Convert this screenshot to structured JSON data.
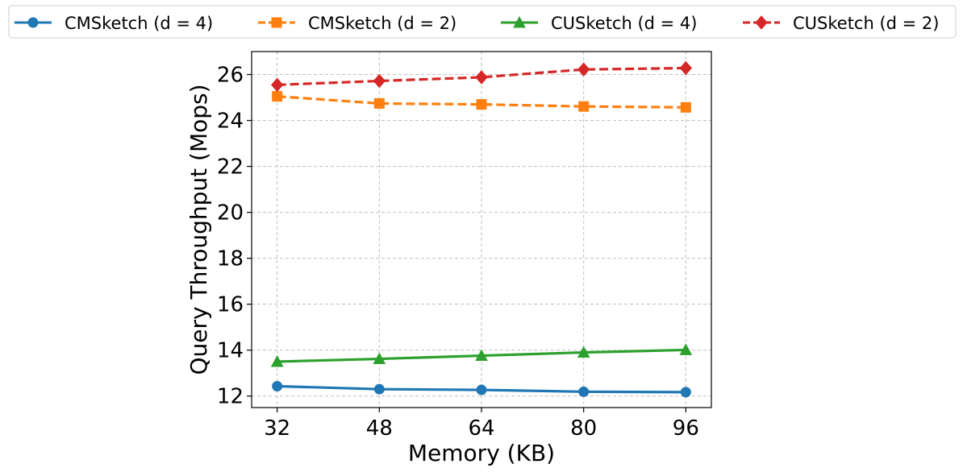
{
  "chart_data": {
    "type": "line",
    "xlabel": "Memory (KB)",
    "ylabel": "Query Throughput (Mops)",
    "categories": [
      "32",
      "48",
      "64",
      "80",
      "96"
    ],
    "x": [
      32,
      48,
      64,
      80,
      96
    ],
    "xlim": [
      28,
      100
    ],
    "ylim": [
      11.5,
      27
    ],
    "yticks": [
      12,
      14,
      16,
      18,
      20,
      22,
      24,
      26
    ],
    "grid": true,
    "legend_position": "top",
    "series": [
      {
        "name": "CMSketch (d = 4)",
        "color": "#1f77b4",
        "marker": "circle",
        "linestyle": "solid",
        "values": [
          12.43,
          12.3,
          12.27,
          12.19,
          12.17
        ]
      },
      {
        "name": "CMSketch (d = 2)",
        "color": "#ff7f0e",
        "marker": "square",
        "linestyle": "dashed",
        "values": [
          25.05,
          24.74,
          24.7,
          24.61,
          24.57
        ]
      },
      {
        "name": "CUSketch (d = 4)",
        "color": "#2ca02c",
        "marker": "triangle",
        "linestyle": "solid",
        "values": [
          13.5,
          13.62,
          13.76,
          13.9,
          14.01
        ]
      },
      {
        "name": "CUSketch (d = 2)",
        "color": "#d62728",
        "marker": "diamond",
        "linestyle": "dashed",
        "values": [
          25.55,
          25.72,
          25.88,
          26.22,
          26.28
        ]
      }
    ]
  }
}
